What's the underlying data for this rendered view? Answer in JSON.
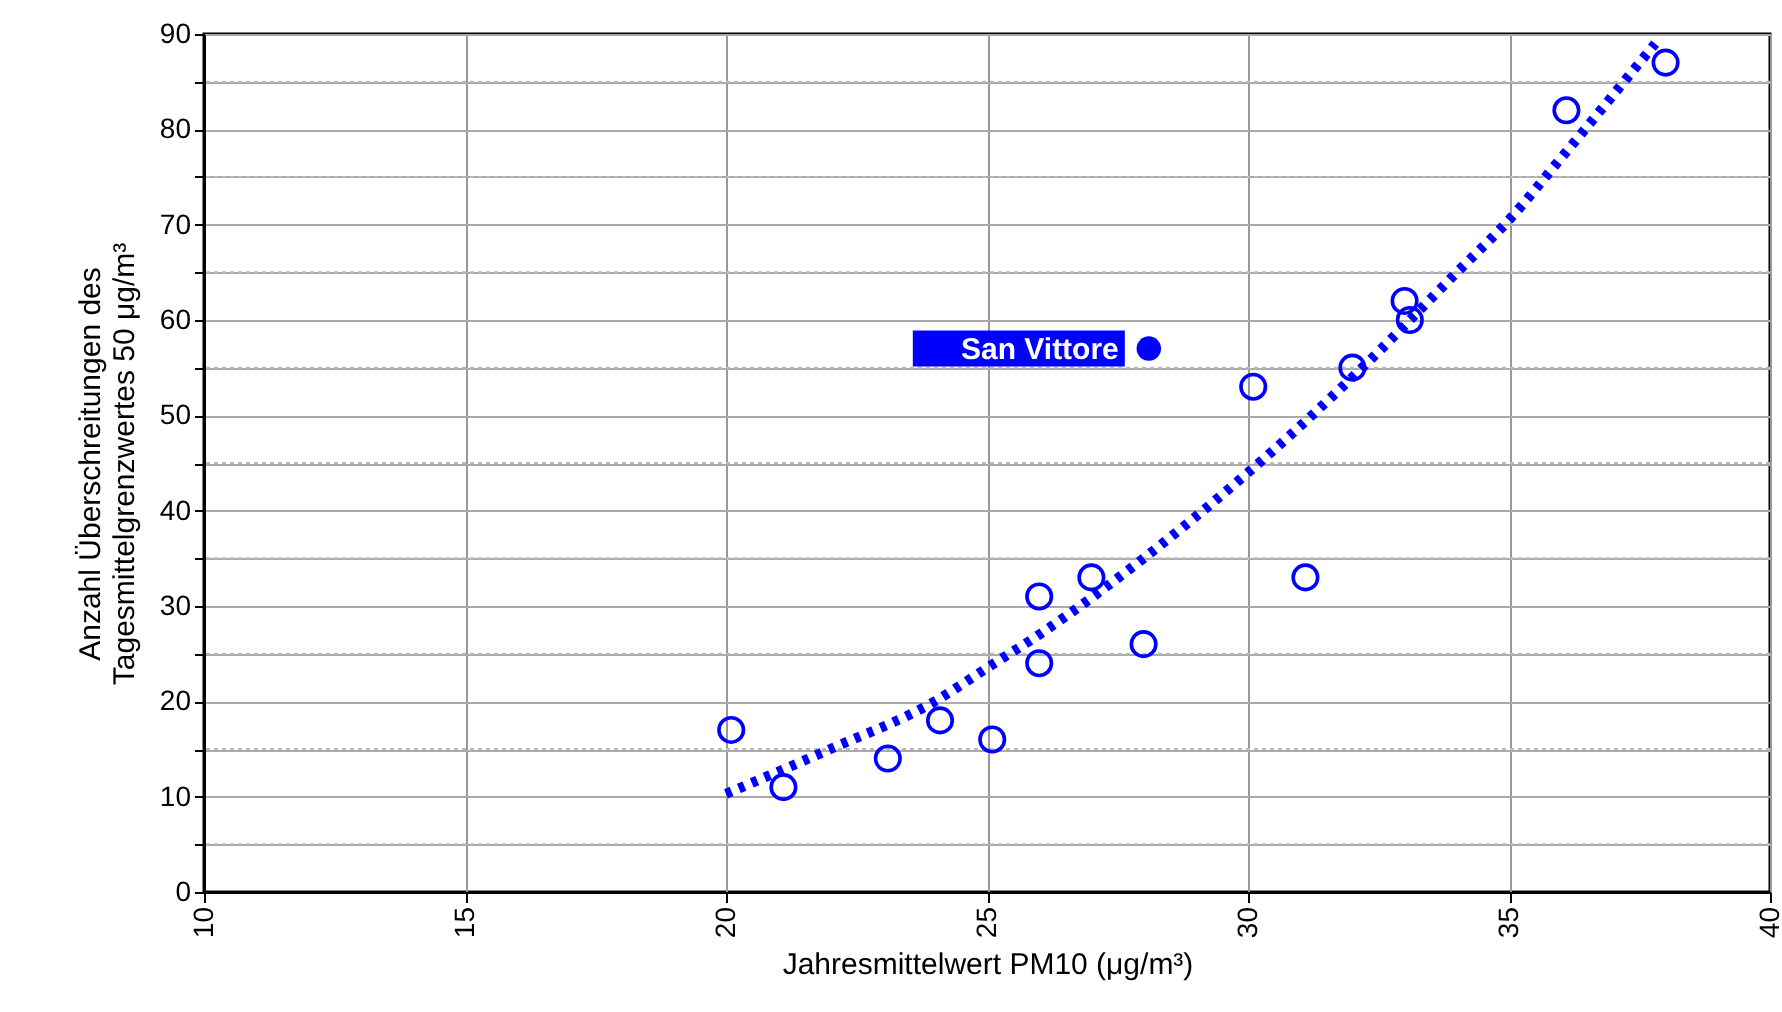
{
  "chart_data": {
    "type": "scatter",
    "xlabel": "Jahresmittelwert PM10 (μg/m³)",
    "ylabel": "Anzahl Überschreitungen des\nTagesmittelgrenzwertes 50 μg/m³",
    "xlim": [
      10,
      40
    ],
    "xticks": [
      10,
      15,
      20,
      25,
      30,
      35,
      40
    ],
    "ylim": [
      0,
      90
    ],
    "yticks": [
      0,
      {
        "value": 5,
        "label": null
      },
      10,
      {
        "value": 15,
        "label": null
      },
      20,
      {
        "value": 25,
        "label": null
      },
      30,
      {
        "value": 35,
        "label": null
      },
      40,
      {
        "value": 45,
        "label": null
      },
      50,
      {
        "value": 55,
        "label": null
      },
      60,
      {
        "value": 65,
        "label": null
      },
      70,
      {
        "value": 75,
        "label": null
      },
      80,
      {
        "value": 85,
        "label": null
      },
      90
    ],
    "grid": true,
    "marker": "circle",
    "series": [
      {
        "color": "#0000ff",
        "x": [
          20.1,
          21.1,
          23.1,
          24.1,
          25.1,
          26,
          26,
          27,
          28,
          30.1,
          31.1,
          32,
          33,
          33.1,
          36.1,
          38
        ],
        "values": [
          17,
          11,
          14,
          18,
          16,
          31,
          24,
          33,
          26,
          53,
          33,
          55,
          62,
          60,
          82,
          87
        ]
      },
      {
        "name": "San Vittore",
        "color": "#0000ff",
        "x": [
          28.1
        ],
        "values": [
          57
        ]
      },
      {
        "type": "line",
        "marker": "none",
        "line_style": "dotted",
        "color": "#0000ff",
        "x": [
          20,
          22,
          24,
          25,
          26,
          28,
          30,
          32,
          34,
          35,
          36,
          37.8
        ],
        "values": [
          10.3,
          15,
          20,
          23.5,
          27,
          35,
          44,
          54,
          65,
          70.5,
          77,
          89
        ]
      }
    ]
  }
}
